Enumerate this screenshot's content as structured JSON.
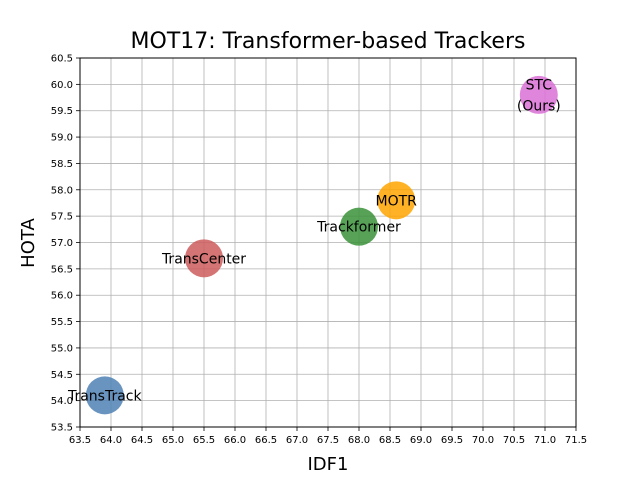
{
  "chart_data": {
    "type": "scatter",
    "title": "MOT17: Transformer-based Trackers",
    "xlabel": "IDF1",
    "ylabel": "HOTA",
    "xlim": [
      63.5,
      71.5
    ],
    "ylim": [
      53.5,
      60.5
    ],
    "xticks": [
      "63.5",
      "64.0",
      "64.5",
      "65.0",
      "65.5",
      "66.0",
      "66.5",
      "67.0",
      "67.5",
      "68.0",
      "68.5",
      "69.0",
      "69.5",
      "70.0",
      "70.5",
      "71.0",
      "71.5"
    ],
    "yticks": [
      "53.5",
      "54.0",
      "54.5",
      "55.0",
      "55.5",
      "56.0",
      "56.5",
      "57.0",
      "57.5",
      "58.0",
      "58.5",
      "59.0",
      "59.5",
      "60.0",
      "60.5"
    ],
    "grid": true,
    "points": [
      {
        "label": "TransTrack",
        "x": 63.9,
        "y": 54.1,
        "color": "#4f81b5"
      },
      {
        "label": "TransCenter",
        "x": 65.5,
        "y": 56.7,
        "color": "#cd5c5c"
      },
      {
        "label": "Trackformer",
        "x": 68.0,
        "y": 57.3,
        "color": "#3a923a"
      },
      {
        "label": "MOTR",
        "x": 68.6,
        "y": 57.8,
        "color": "#ffa500"
      },
      {
        "label": "STC\n(Ours)",
        "x": 70.9,
        "y": 59.8,
        "color": "#da70d6"
      }
    ]
  }
}
